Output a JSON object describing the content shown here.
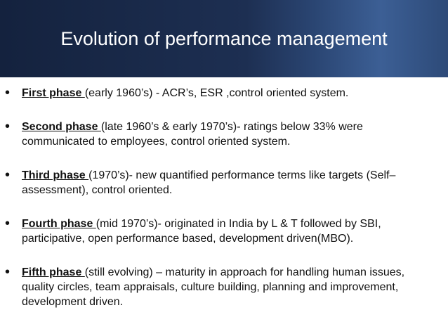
{
  "header": {
    "title": "Evolution of performance management"
  },
  "bullets": [
    {
      "term": "First phase ",
      "text": "(early 1960’s) - ACR’s, ESR ,control oriented system."
    },
    {
      "term": "Second phase ",
      "text": "(late 1960’s & early 1970’s)- ratings below 33% were communicated to employees, control oriented system."
    },
    {
      "term": "Third phase ",
      "text": "(1970’s)- new quantified performance terms like targets (Self–assessment), control oriented."
    },
    {
      "term": "Fourth phase ",
      "text": "(mid 1970’s)- originated in India by L & T followed by SBI, participative, open performance based, development driven(MBO)."
    },
    {
      "term": "Fifth phase ",
      "text": "(still evolving) – maturity in approach for handling human issues, quality circles, team appraisals, culture building, planning and improvement, development driven."
    }
  ]
}
